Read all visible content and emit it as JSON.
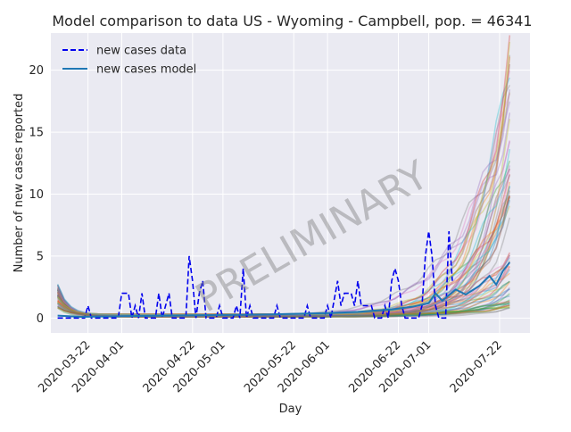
{
  "chart_data": {
    "type": "line",
    "title": "Model comparison to data US - Wyoming - Campbell, pop. = 46341",
    "xlabel": "Day",
    "ylabel": "Number of new cases reported",
    "watermark": "PRELIMINARY",
    "x_range": [
      "2020-03-11",
      "2020-07-31"
    ],
    "ylim": [
      -1.2,
      23.0
    ],
    "grid": true,
    "legend_position": "top-left",
    "x_ticks": [
      "2020-03-22",
      "2020-04-01",
      "2020-04-22",
      "2020-05-01",
      "2020-05-22",
      "2020-06-01",
      "2020-06-22",
      "2020-07-01",
      "2020-07-22"
    ],
    "y_ticks": [
      0,
      5,
      10,
      15,
      20
    ],
    "series": [
      {
        "name": "new cases data",
        "style": "dashed",
        "color": "#0000ee",
        "points": [
          [
            "2020-03-13",
            0
          ],
          [
            "2020-03-21",
            0
          ],
          [
            "2020-03-22",
            1
          ],
          [
            "2020-03-23",
            0
          ],
          [
            "2020-03-31",
            0
          ],
          [
            "2020-04-01",
            2
          ],
          [
            "2020-04-03",
            2
          ],
          [
            "2020-04-04",
            0
          ],
          [
            "2020-04-05",
            1
          ],
          [
            "2020-04-06",
            0
          ],
          [
            "2020-04-07",
            2
          ],
          [
            "2020-04-08",
            0
          ],
          [
            "2020-04-11",
            0
          ],
          [
            "2020-04-12",
            2
          ],
          [
            "2020-04-13",
            0
          ],
          [
            "2020-04-15",
            2
          ],
          [
            "2020-04-16",
            0
          ],
          [
            "2020-04-20",
            0
          ],
          [
            "2020-04-21",
            5
          ],
          [
            "2020-04-22",
            3
          ],
          [
            "2020-04-23",
            0
          ],
          [
            "2020-04-24",
            2
          ],
          [
            "2020-04-25",
            3
          ],
          [
            "2020-04-26",
            0
          ],
          [
            "2020-04-29",
            0
          ],
          [
            "2020-04-30",
            1
          ],
          [
            "2020-05-01",
            0
          ],
          [
            "2020-05-04",
            0
          ],
          [
            "2020-05-05",
            1
          ],
          [
            "2020-05-06",
            0
          ],
          [
            "2020-05-07",
            4
          ],
          [
            "2020-05-08",
            0
          ],
          [
            "2020-05-09",
            1
          ],
          [
            "2020-05-10",
            0
          ],
          [
            "2020-05-16",
            0
          ],
          [
            "2020-05-17",
            1
          ],
          [
            "2020-05-18",
            0
          ],
          [
            "2020-05-25",
            0
          ],
          [
            "2020-05-26",
            1
          ],
          [
            "2020-05-27",
            0
          ],
          [
            "2020-05-31",
            0
          ],
          [
            "2020-06-01",
            1
          ],
          [
            "2020-06-02",
            0
          ],
          [
            "2020-06-04",
            3
          ],
          [
            "2020-06-05",
            1
          ],
          [
            "2020-06-06",
            2
          ],
          [
            "2020-06-08",
            2
          ],
          [
            "2020-06-09",
            1
          ],
          [
            "2020-06-10",
            3
          ],
          [
            "2020-06-11",
            1
          ],
          [
            "2020-06-14",
            1
          ],
          [
            "2020-06-15",
            0
          ],
          [
            "2020-06-17",
            0
          ],
          [
            "2020-06-18",
            1
          ],
          [
            "2020-06-19",
            0
          ],
          [
            "2020-06-20",
            3
          ],
          [
            "2020-06-21",
            4
          ],
          [
            "2020-06-22",
            3
          ],
          [
            "2020-06-23",
            1
          ],
          [
            "2020-06-24",
            0
          ],
          [
            "2020-06-28",
            0
          ],
          [
            "2020-06-29",
            1
          ],
          [
            "2020-06-30",
            5
          ],
          [
            "2020-07-01",
            7
          ],
          [
            "2020-07-02",
            5
          ],
          [
            "2020-07-03",
            1
          ],
          [
            "2020-07-04",
            0
          ],
          [
            "2020-07-06",
            0
          ],
          [
            "2020-07-07",
            7
          ],
          [
            "2020-07-08",
            3
          ]
        ]
      },
      {
        "name": "new cases model",
        "style": "solid",
        "color": "#1f77b4",
        "points": [
          [
            "2020-03-13",
            0.2
          ],
          [
            "2020-03-20",
            0.1
          ],
          [
            "2020-04-01",
            0.15
          ],
          [
            "2020-04-15",
            0.2
          ],
          [
            "2020-05-01",
            0.25
          ],
          [
            "2020-05-15",
            0.3
          ],
          [
            "2020-06-01",
            0.4
          ],
          [
            "2020-06-10",
            0.5
          ],
          [
            "2020-06-20",
            0.7
          ],
          [
            "2020-06-26",
            0.9
          ],
          [
            "2020-07-01",
            1.2
          ],
          [
            "2020-07-03",
            2.0
          ],
          [
            "2020-07-05",
            1.4
          ],
          [
            "2020-07-09",
            2.3
          ],
          [
            "2020-07-12",
            1.9
          ],
          [
            "2020-07-16",
            2.6
          ],
          [
            "2020-07-19",
            3.4
          ],
          [
            "2020-07-21",
            2.7
          ],
          [
            "2020-07-23",
            3.8
          ],
          [
            "2020-07-25",
            4.5
          ]
        ]
      }
    ],
    "ensemble": {
      "count": 70,
      "start": "2020-03-13",
      "end": "2020-07-25",
      "initial_range": [
        0.5,
        2.5
      ],
      "final_range": [
        0.5,
        22.0
      ],
      "colors": [
        "#1f77b4",
        "#ff7f0e",
        "#2ca02c",
        "#d62728",
        "#9467bd",
        "#8c564b",
        "#e377c2",
        "#7f7f7f",
        "#bcbd22",
        "#17becf"
      ]
    }
  }
}
